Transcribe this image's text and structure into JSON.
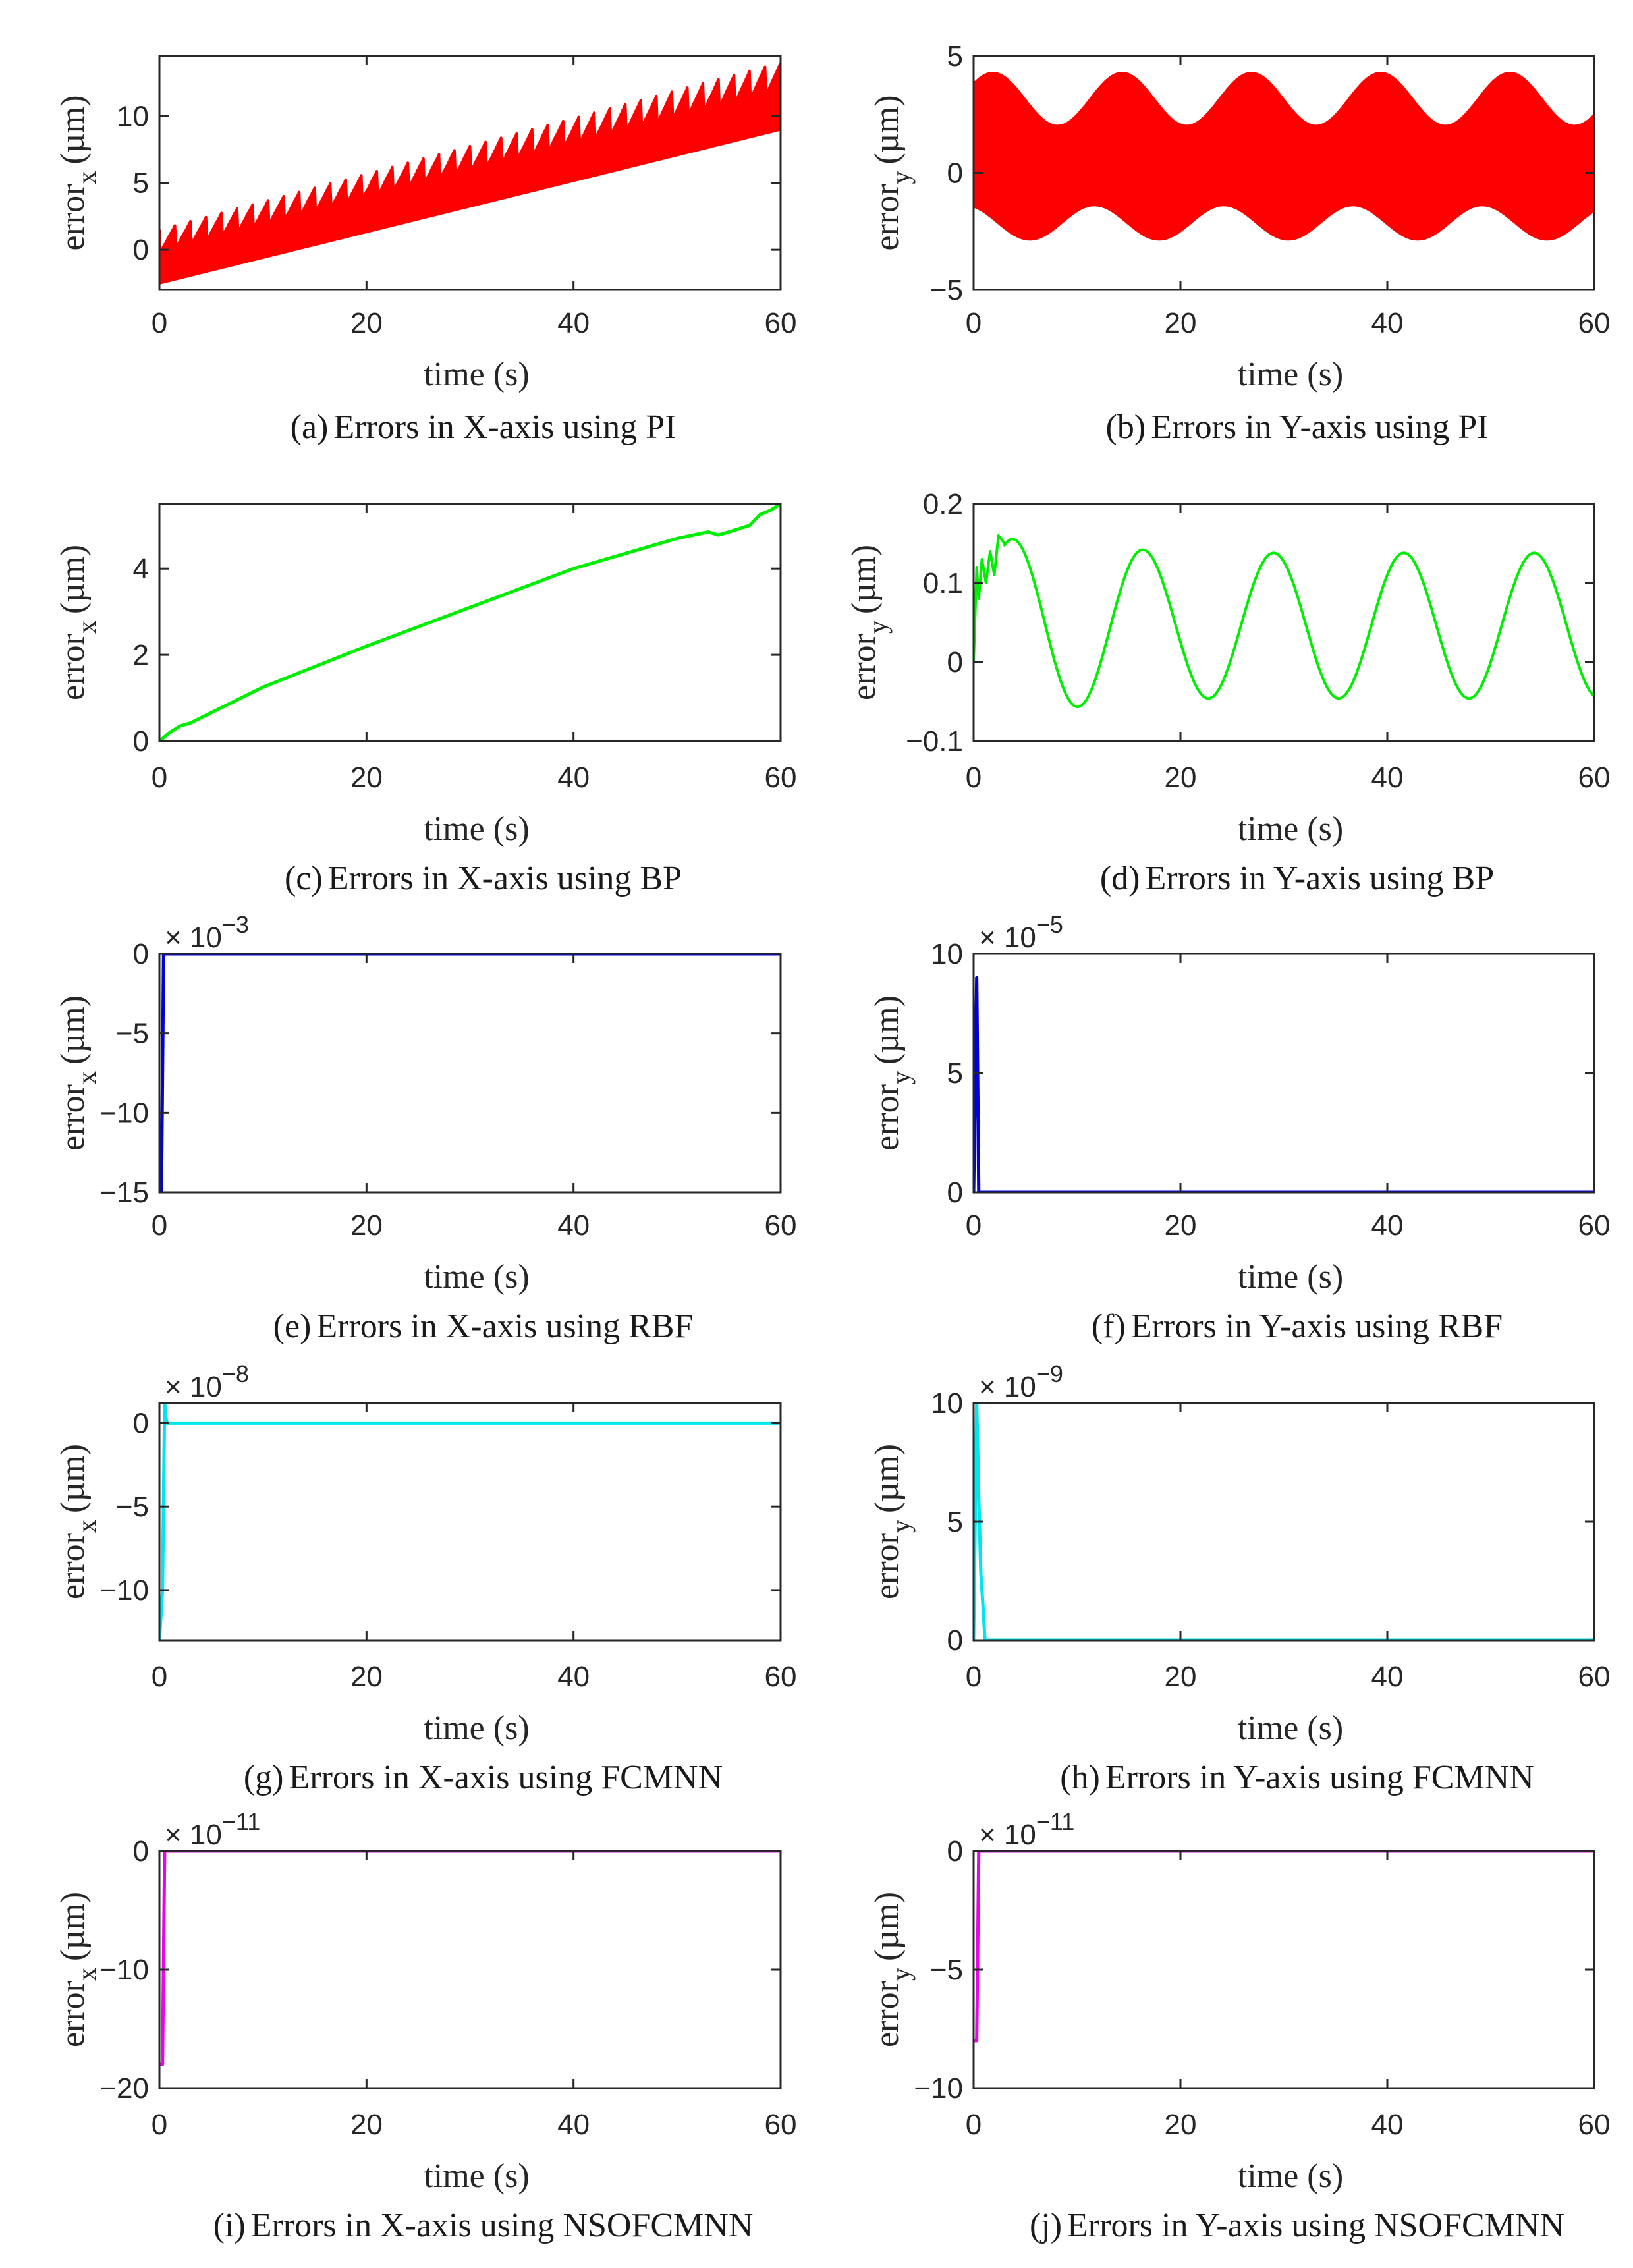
{
  "figure": {
    "domain_note": "Tracking errors of X and Y axes for five controllers"
  },
  "chart_data": [
    {
      "id": "a",
      "type": "line",
      "axis": "x",
      "ylabel_main": "error",
      "ylabel_sub": "x",
      "ylabel_unit": "(µm)",
      "xlabel": "time (s)",
      "caption_label": "(a)",
      "caption": "Errors in X-axis using PI",
      "xlim": [
        0,
        60
      ],
      "ylim": [
        -3,
        14.5
      ],
      "xticks": [
        0,
        20,
        40,
        60
      ],
      "xtick_labels": [
        "0",
        "20",
        "40",
        "60"
      ],
      "yticks": [
        0,
        5,
        10
      ],
      "ytick_labels": [
        "0",
        "5",
        "10"
      ],
      "exponent": "",
      "color": "#ff0000",
      "series": [
        {
          "name": "error_x PI",
          "model": "sawtooth",
          "x": [
            0,
            60
          ],
          "lower": [
            -2.5,
            9
          ],
          "upper": [
            1.5,
            14
          ],
          "teeth": 40,
          "filled": true
        }
      ]
    },
    {
      "id": "b",
      "type": "line",
      "axis": "y",
      "ylabel_main": "error",
      "ylabel_sub": "y",
      "ylabel_unit": "(µm)",
      "xlabel": "time (s)",
      "caption_label": "(b)",
      "caption": "Errors in Y-axis using PI",
      "xlim": [
        0,
        60
      ],
      "ylim": [
        -5,
        5
      ],
      "xticks": [
        0,
        20,
        40,
        60
      ],
      "xtick_labels": [
        "0",
        "20",
        "40",
        "60"
      ],
      "yticks": [
        -5,
        0,
        5
      ],
      "ytick_labels": [
        "−5",
        "0",
        "5"
      ],
      "exponent": "",
      "color": "#ff0000",
      "series": [
        {
          "name": "error_y PI",
          "model": "oscillation",
          "x": [
            0,
            60
          ],
          "center": 0.3,
          "amplitude": [
            2.2,
            3.5
          ],
          "period": 12.5,
          "filled": true
        }
      ]
    },
    {
      "id": "c",
      "type": "line",
      "axis": "x",
      "ylabel_main": "error",
      "ylabel_sub": "x",
      "ylabel_unit": "(µm)",
      "xlabel": "time (s)",
      "caption_label": "(c)",
      "caption": "Errors in X-axis using BP",
      "xlim": [
        0,
        60
      ],
      "ylim": [
        0,
        5.5
      ],
      "xticks": [
        0,
        20,
        40,
        60
      ],
      "xtick_labels": [
        "0",
        "20",
        "40",
        "60"
      ],
      "yticks": [
        0,
        2,
        4
      ],
      "ytick_labels": [
        "0",
        "2",
        "4"
      ],
      "exponent": "",
      "color": "#00ee00",
      "series": [
        {
          "name": "error_x BP",
          "model": "points",
          "x": [
            0,
            0.5,
            1,
            2,
            3,
            10,
            20,
            30,
            40,
            45,
            50,
            53,
            54,
            55,
            57,
            58,
            59,
            60
          ],
          "y": [
            0,
            0.1,
            0.2,
            0.35,
            0.42,
            1.25,
            2.2,
            3.1,
            4.0,
            4.35,
            4.7,
            4.85,
            4.78,
            4.85,
            5.0,
            5.25,
            5.35,
            5.5
          ]
        }
      ]
    },
    {
      "id": "d",
      "type": "line",
      "axis": "y",
      "ylabel_main": "error",
      "ylabel_sub": "y",
      "ylabel_unit": "(µm)",
      "xlabel": "time (s)",
      "caption_label": "(d)",
      "caption": "Errors in Y-axis using BP",
      "xlim": [
        0,
        60
      ],
      "ylim": [
        -0.1,
        0.2
      ],
      "xticks": [
        0,
        20,
        40,
        60
      ],
      "xtick_labels": [
        "0",
        "20",
        "40",
        "60"
      ],
      "yticks": [
        -0.1,
        0,
        0.1,
        0.2
      ],
      "ytick_labels": [
        "−0.1",
        "0",
        "0.1",
        "0.2"
      ],
      "exponent": "",
      "color": "#00ee00",
      "series": [
        {
          "name": "error_y BP",
          "model": "sine",
          "x": [
            0,
            60
          ],
          "center": 0.046,
          "amplitude": 0.092,
          "period": 12.6,
          "peak_at": 3.8,
          "transient_end": 3.0
        }
      ]
    },
    {
      "id": "e",
      "type": "line",
      "axis": "x",
      "ylabel_main": "error",
      "ylabel_sub": "x",
      "ylabel_unit": "(µm)",
      "xlabel": "time (s)",
      "caption_label": "(e)",
      "caption": "Errors in X-axis using RBF",
      "xlim": [
        0,
        60
      ],
      "ylim": [
        -15,
        0
      ],
      "xticks": [
        0,
        20,
        40,
        60
      ],
      "xtick_labels": [
        "0",
        "20",
        "40",
        "60"
      ],
      "yticks": [
        -15,
        -10,
        -5,
        0
      ],
      "ytick_labels": [
        "−15",
        "−10",
        "−5",
        "0"
      ],
      "exponent_base": "× 10",
      "exponent_power": "−3",
      "color": "#0000dd",
      "series": [
        {
          "name": "error_x RBF",
          "model": "points",
          "x": [
            0,
            0.2,
            0.4,
            60
          ],
          "y": [
            -15,
            -15,
            0,
            0
          ]
        }
      ]
    },
    {
      "id": "f",
      "type": "line",
      "axis": "y",
      "ylabel_main": "error",
      "ylabel_sub": "y",
      "ylabel_unit": "(µm)",
      "xlabel": "time (s)",
      "caption_label": "(f)",
      "caption": "Errors in Y-axis using RBF",
      "xlim": [
        0,
        60
      ],
      "ylim": [
        0,
        10
      ],
      "xticks": [
        0,
        20,
        40,
        60
      ],
      "xtick_labels": [
        "0",
        "20",
        "40",
        "60"
      ],
      "yticks": [
        0,
        5,
        10
      ],
      "ytick_labels": [
        "0",
        "5",
        "10"
      ],
      "exponent_base": "× 10",
      "exponent_power": "−5",
      "color": "#0000dd",
      "series": [
        {
          "name": "error_y RBF",
          "model": "points",
          "x": [
            0,
            0.3,
            0.5,
            60
          ],
          "y": [
            0,
            9,
            0,
            0
          ]
        }
      ]
    },
    {
      "id": "g",
      "type": "line",
      "axis": "x",
      "ylabel_main": "error",
      "ylabel_sub": "x",
      "ylabel_unit": "(µm)",
      "xlabel": "time (s)",
      "caption_label": "(g)",
      "caption": "Errors in X-axis using FCMNN",
      "xlim": [
        0,
        60
      ],
      "ylim": [
        -13,
        1.2
      ],
      "xticks": [
        0,
        20,
        40,
        60
      ],
      "xtick_labels": [
        "0",
        "20",
        "40",
        "60"
      ],
      "yticks": [
        -10,
        -5,
        0
      ],
      "ytick_labels": [
        "−10",
        "−5",
        "0"
      ],
      "exponent_base": "× 10",
      "exponent_power": "−8",
      "color": "#00e5ee",
      "series": [
        {
          "name": "error_x FCMNN",
          "model": "points",
          "x": [
            0,
            0.3,
            0.5,
            0.7,
            60
          ],
          "y": [
            -13,
            -10,
            1.2,
            0,
            0
          ]
        }
      ]
    },
    {
      "id": "h",
      "type": "line",
      "axis": "y",
      "ylabel_main": "error",
      "ylabel_sub": "y",
      "ylabel_unit": "(µm)",
      "xlabel": "time (s)",
      "caption_label": "(h)",
      "caption": "Errors in Y-axis using FCMNN",
      "xlim": [
        0,
        60
      ],
      "ylim": [
        0,
        10
      ],
      "xticks": [
        0,
        20,
        40,
        60
      ],
      "xtick_labels": [
        "0",
        "20",
        "40",
        "60"
      ],
      "yticks": [
        0,
        5,
        10
      ],
      "ytick_labels": [
        "0",
        "5",
        "10"
      ],
      "exponent_base": "× 10",
      "exponent_power": "−9",
      "color": "#00e5ee",
      "series": [
        {
          "name": "error_y FCMNN",
          "model": "points",
          "x": [
            0,
            0.3,
            0.5,
            0.7,
            0.9,
            1.1,
            60
          ],
          "y": [
            0,
            10,
            6,
            2.8,
            1.5,
            0,
            0
          ]
        }
      ]
    },
    {
      "id": "i",
      "type": "line",
      "axis": "x",
      "ylabel_main": "error",
      "ylabel_sub": "x",
      "ylabel_unit": "(µm)",
      "xlabel": "time (s)",
      "caption_label": "(i)",
      "caption": "Errors in X-axis using NSOFCMNN",
      "xlim": [
        0,
        60
      ],
      "ylim": [
        -20,
        0
      ],
      "xticks": [
        0,
        20,
        40,
        60
      ],
      "xtick_labels": [
        "0",
        "20",
        "40",
        "60"
      ],
      "yticks": [
        -20,
        -10,
        0
      ],
      "ytick_labels": [
        "−20",
        "−10",
        "0"
      ],
      "exponent_base": "× 10",
      "exponent_power": "−11",
      "color": "#ee00ee",
      "series": [
        {
          "name": "error_x NSOFCMNN",
          "model": "points",
          "x": [
            0,
            0.3,
            0.5,
            60
          ],
          "y": [
            -18,
            -18,
            0,
            0
          ]
        }
      ]
    },
    {
      "id": "j",
      "type": "line",
      "axis": "y",
      "ylabel_main": "error",
      "ylabel_sub": "y",
      "ylabel_unit": "(µm)",
      "xlabel": "time (s)",
      "caption_label": "(j)",
      "caption": "Errors in Y-axis using NSOFCMNN",
      "xlim": [
        0,
        60
      ],
      "ylim": [
        -10,
        0
      ],
      "xticks": [
        0,
        20,
        40,
        60
      ],
      "xtick_labels": [
        "0",
        "20",
        "40",
        "60"
      ],
      "yticks": [
        -10,
        -5,
        0
      ],
      "ytick_labels": [
        "−10",
        "−5",
        "0"
      ],
      "exponent_base": "× 10",
      "exponent_power": "−11",
      "color": "#ee00ee",
      "series": [
        {
          "name": "error_y NSOFCMNN",
          "model": "points",
          "x": [
            0,
            0.3,
            0.5,
            60
          ],
          "y": [
            -8,
            -8,
            0,
            0
          ]
        }
      ]
    }
  ]
}
